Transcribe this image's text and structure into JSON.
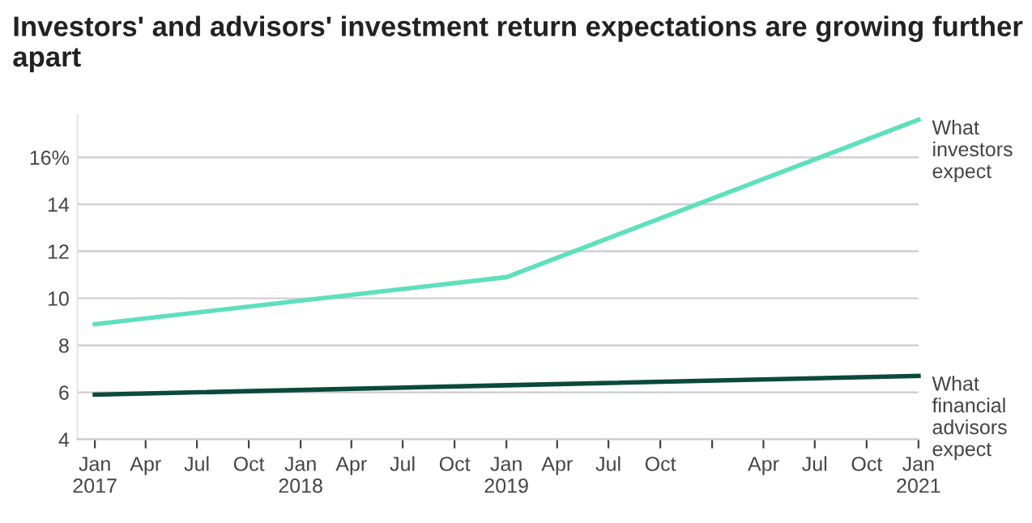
{
  "chart_data": {
    "type": "line",
    "title": "Investors' and advisors' investment return expectations are growing further apart",
    "x": [
      "2017-01",
      "2019-01",
      "2021-01"
    ],
    "series": [
      {
        "color": "#5ee0bd",
        "values": [
          8.9,
          10.9,
          17.6
        ]
      },
      {
        "color": "#0b4a3a",
        "values": [
          5.9,
          6.3,
          6.7
        ]
      }
    ],
    "annotations": [
      {
        "text": "What\ninvestors\nexpect",
        "x": "2021-01",
        "y": 17.6
      },
      {
        "text": "What\nfinancial\nadvisors\nexpect",
        "x": "2021-01",
        "y": 6.7
      }
    ],
    "xlim": [
      "2016-12",
      "2021-01"
    ],
    "xticks": [
      {
        "value": "2017-01",
        "label": "Jan\n2017"
      },
      {
        "value": "2017-04",
        "label": "Apr"
      },
      {
        "value": "2017-07",
        "label": "Jul"
      },
      {
        "value": "2017-10",
        "label": "Oct"
      },
      {
        "value": "2018-01",
        "label": "Jan\n2018"
      },
      {
        "value": "2018-04",
        "label": "Apr"
      },
      {
        "value": "2018-07",
        "label": "Jul"
      },
      {
        "value": "2018-10",
        "label": "Oct"
      },
      {
        "value": "2019-01",
        "label": "Jan\n2019"
      },
      {
        "value": "2019-04",
        "label": "Apr"
      },
      {
        "value": "2019-07",
        "label": "Jul"
      },
      {
        "value": "2019-10",
        "label": "Oct"
      },
      {
        "value": "2020-01",
        "label": null
      },
      {
        "value": "2020-04",
        "label": "Apr"
      },
      {
        "value": "2020-07",
        "label": "Jul"
      },
      {
        "value": "2020-10",
        "label": "Oct"
      },
      {
        "value": "2021-01",
        "label": "Jan\n2021"
      }
    ],
    "ylim": [
      4,
      17.8
    ],
    "yticks": [
      4,
      6,
      8,
      10,
      12,
      {
        "value": 14,
        "label": "14"
      },
      {
        "value": 16,
        "label": "16%"
      }
    ],
    "grid": "y",
    "legend": false,
    "marker": "none",
    "line_style": "solid"
  }
}
